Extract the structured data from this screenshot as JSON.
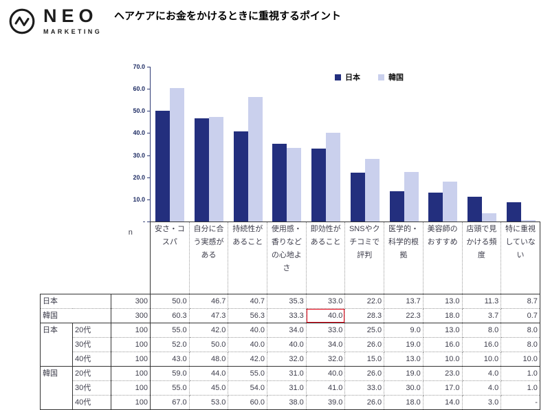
{
  "logo": {
    "brand": "NEO",
    "sub": "MARKETING"
  },
  "header": {
    "title": "ヘアケアにお金をかけるときに重視するポイント"
  },
  "colors": {
    "japan": "#232f7e",
    "korea": "#cad0ed",
    "highlight": "#e60012",
    "axis": "#2e3a74"
  },
  "chart_data": {
    "type": "bar",
    "title": "ヘアケアにお金をかけるときに重視するポイント",
    "categories": [
      "安さ・コスパ",
      "自分に合う実感がある",
      "持続性があること",
      "使用感・香りなどの心地よさ",
      "即効性があること",
      "SNSやクチコミで評判",
      "医学的・科学的根拠",
      "美容師のおすすめ",
      "店頭で見かける頻度",
      "特に重視していない"
    ],
    "series": [
      {
        "name": "日本",
        "values": [
          50.0,
          46.7,
          40.7,
          35.3,
          33.0,
          22.0,
          13.7,
          13.0,
          11.3,
          8.7
        ]
      },
      {
        "name": "韓国",
        "values": [
          60.3,
          47.3,
          56.3,
          33.3,
          40.0,
          28.3,
          22.3,
          18.0,
          3.7,
          0.7
        ]
      }
    ],
    "xlabel": "",
    "ylabel": "",
    "ylim": [
      0,
      70
    ],
    "yticks": [
      {
        "label": "70.0",
        "value": 70
      },
      {
        "label": "60.0",
        "value": 60
      },
      {
        "label": "50.0",
        "value": 50
      },
      {
        "label": "40.0",
        "value": 40
      },
      {
        "label": "30.0",
        "value": 30
      },
      {
        "label": "20.0",
        "value": 20
      },
      {
        "label": "10.0",
        "value": 10
      },
      {
        "label": "-",
        "value": 0
      }
    ],
    "grid": false,
    "legend_position": "top-inside"
  },
  "table": {
    "n_header": "n",
    "columns": [
      "安さ・コスパ",
      "自分に合う実感がある",
      "持続性があること",
      "使用感・香りなどの心地よさ",
      "即効性があること",
      "SNSやクチコミで評判",
      "医学的・科学的根拠",
      "美容師のおすすめ",
      "店頭で見かける頻度",
      "特に重視していない"
    ],
    "rows": [
      {
        "group": "日本",
        "age": null,
        "n": "300",
        "values": [
          "50.0",
          "46.7",
          "40.7",
          "35.3",
          "33.0",
          "22.0",
          "13.7",
          "13.0",
          "11.3",
          "8.7"
        ]
      },
      {
        "group": "韓国",
        "age": null,
        "n": "300",
        "values": [
          "60.3",
          "47.3",
          "56.3",
          "33.3",
          "40.0",
          "28.3",
          "22.3",
          "18.0",
          "3.7",
          "0.7"
        ]
      },
      {
        "group": "日本",
        "age": "20代",
        "n": "100",
        "values": [
          "55.0",
          "42.0",
          "40.0",
          "34.0",
          "33.0",
          "25.0",
          "9.0",
          "13.0",
          "8.0",
          "8.0"
        ]
      },
      {
        "group": null,
        "age": "30代",
        "n": "100",
        "values": [
          "52.0",
          "50.0",
          "40.0",
          "40.0",
          "34.0",
          "26.0",
          "19.0",
          "16.0",
          "16.0",
          "8.0"
        ]
      },
      {
        "group": null,
        "age": "40代",
        "n": "100",
        "values": [
          "43.0",
          "48.0",
          "42.0",
          "32.0",
          "32.0",
          "15.0",
          "13.0",
          "10.0",
          "10.0",
          "10.0"
        ]
      },
      {
        "group": "韓国",
        "age": "20代",
        "n": "100",
        "values": [
          "59.0",
          "44.0",
          "55.0",
          "31.0",
          "40.0",
          "26.0",
          "19.0",
          "23.0",
          "4.0",
          "1.0"
        ]
      },
      {
        "group": null,
        "age": "30代",
        "n": "100",
        "values": [
          "55.0",
          "45.0",
          "54.0",
          "31.0",
          "41.0",
          "33.0",
          "30.0",
          "17.0",
          "4.0",
          "1.0"
        ]
      },
      {
        "group": null,
        "age": "40代",
        "n": "100",
        "values": [
          "67.0",
          "53.0",
          "60.0",
          "38.0",
          "39.0",
          "26.0",
          "18.0",
          "14.0",
          "3.0",
          "-"
        ]
      }
    ],
    "highlight": {
      "row": 1,
      "col": 4
    }
  }
}
